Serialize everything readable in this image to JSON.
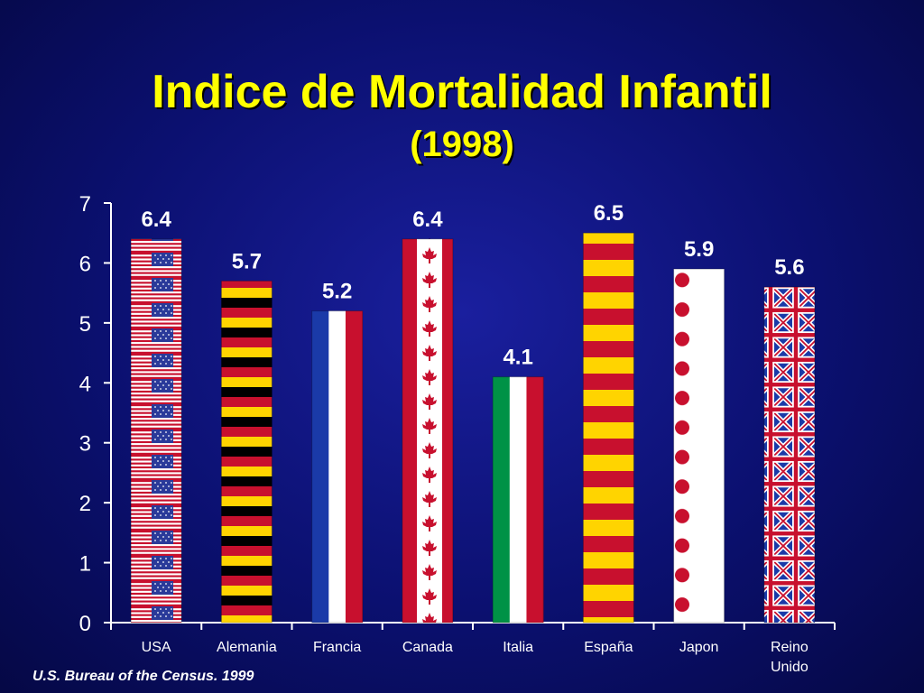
{
  "chart_data": {
    "type": "bar",
    "title": "Indice de Mortalidad Infantil",
    "subtitle": "(1998)",
    "categories": [
      "USA",
      "Alemania",
      "Francia",
      "Canada",
      "Italia",
      "España",
      "Japon",
      "Reino Unido"
    ],
    "category_lines": [
      [
        "USA"
      ],
      [
        "Alemania"
      ],
      [
        "Francia"
      ],
      [
        "Canada"
      ],
      [
        "Italia"
      ],
      [
        "España"
      ],
      [
        "Japon"
      ],
      [
        "Reino",
        "Unido"
      ]
    ],
    "values": [
      6.4,
      5.7,
      5.2,
      6.4,
      4.1,
      6.5,
      5.9,
      5.6
    ],
    "data_labels": [
      "6.4",
      "5.7",
      "5.2",
      "6.4",
      "4.1",
      "6.5",
      "5.9",
      "5.6"
    ],
    "bar_patterns": [
      "usa-flag",
      "germany-flag",
      "france-flag",
      "canada-flag",
      "italy-flag",
      "spain-flag",
      "japan-flag",
      "uk-flag"
    ],
    "ylim": [
      0,
      7
    ],
    "yticks": [
      0,
      1,
      2,
      3,
      4,
      5,
      6,
      7
    ],
    "xlabel": "",
    "ylabel": "",
    "grid": false,
    "legend": "none"
  },
  "source_note": "U.S. Bureau of the Census. 1999",
  "colors": {
    "background": "#0b1070",
    "title": "#ffff00",
    "text": "#ffffff",
    "axis": "#ffffff",
    "red": "#c8102e",
    "blue": "#1a3aa8",
    "yellow": "#ffd400",
    "green": "#009246",
    "black": "#000000",
    "white": "#ffffff"
  }
}
